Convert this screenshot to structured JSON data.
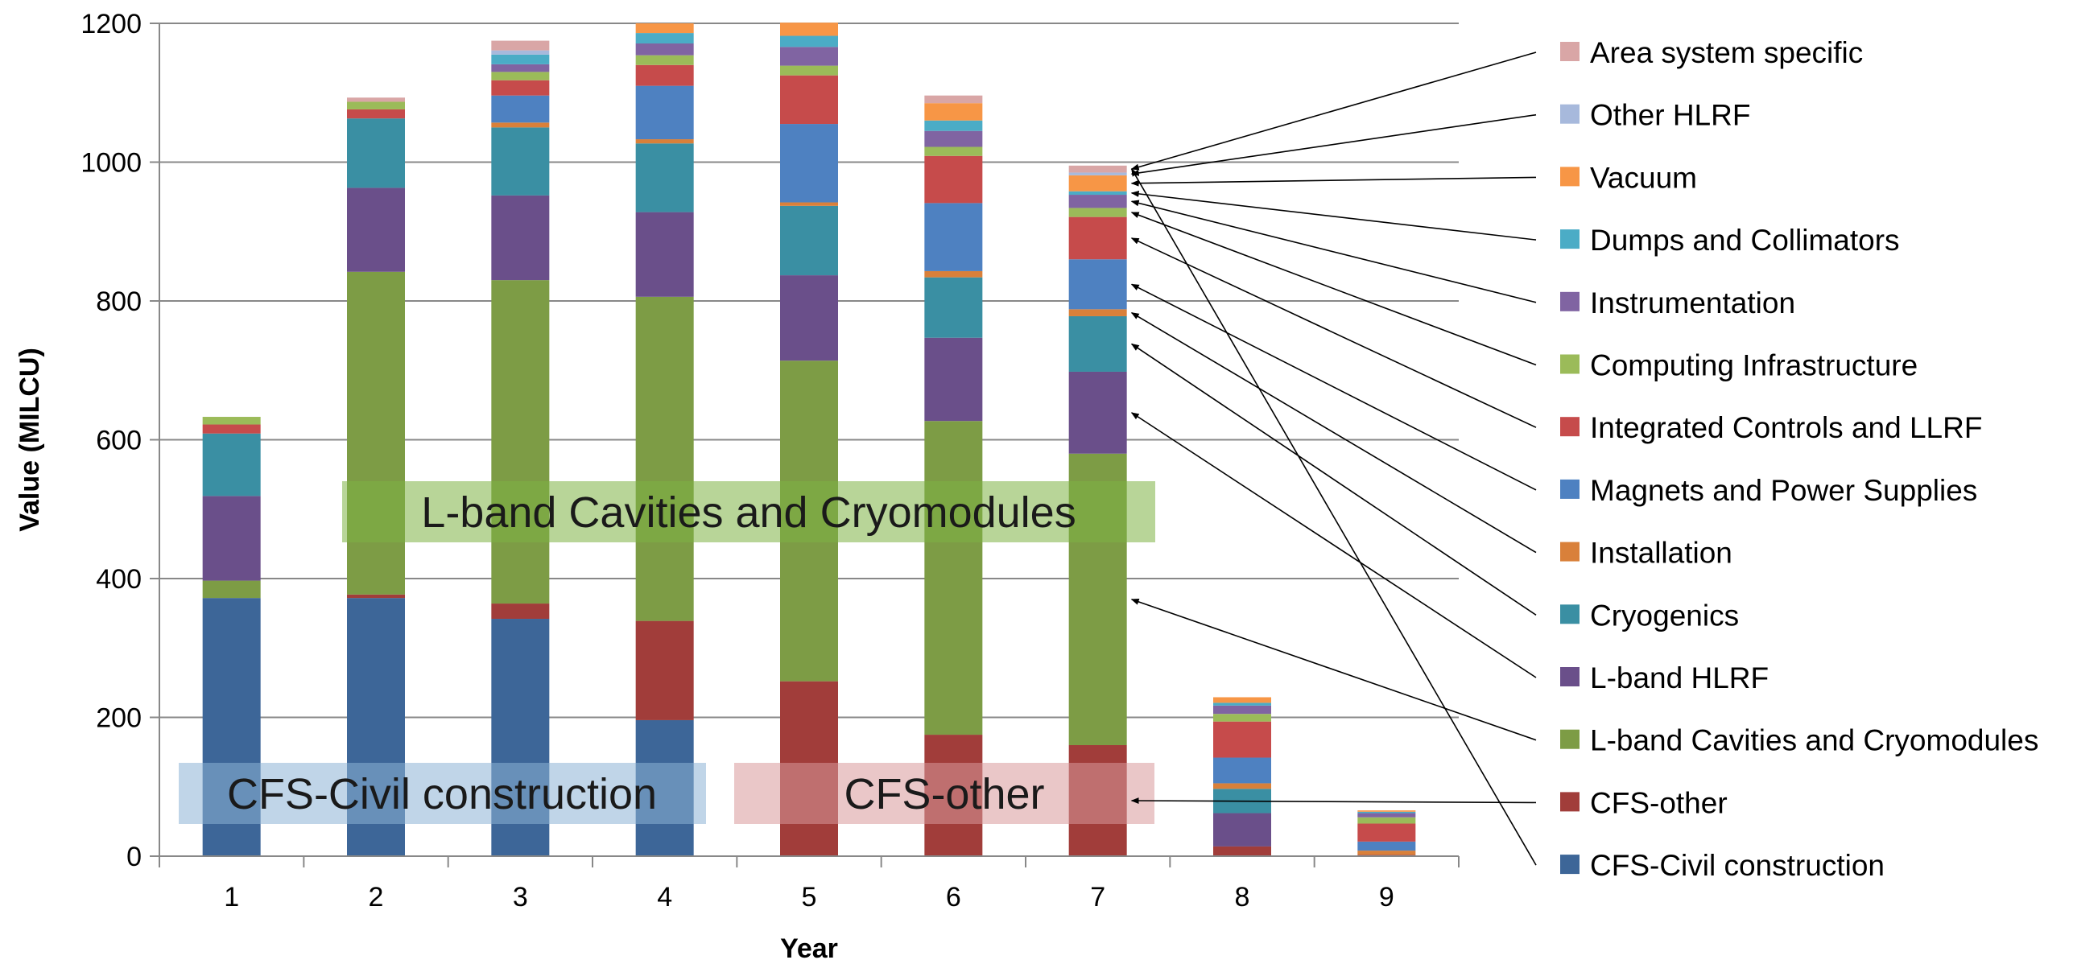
{
  "chart_data": {
    "type": "bar",
    "stacked": true,
    "xlabel": "Year",
    "ylabel": "Value (MILCU)",
    "ylim": [
      0,
      1200
    ],
    "yticks": [
      0,
      200,
      400,
      600,
      800,
      1000,
      1200
    ],
    "categories": [
      "1",
      "2",
      "3",
      "4",
      "5",
      "6",
      "7",
      "8",
      "9"
    ],
    "grid": true,
    "legend_position": "right",
    "series": [
      {
        "name": "CFS-Civil construction",
        "color": "#3D6698",
        "values": [
          372,
          372,
          342,
          196,
          0,
          0,
          0,
          0,
          0
        ]
      },
      {
        "name": "CFS-other",
        "color": "#A13D3A",
        "values": [
          0,
          5,
          22,
          143,
          252,
          175,
          160,
          14,
          2
        ]
      },
      {
        "name": "L-band Cavities and Cryomodules",
        "color": "#7D9C45",
        "values": [
          25,
          465,
          466,
          467,
          462,
          452,
          420,
          0,
          0
        ]
      },
      {
        "name": "L-band HLRF",
        "color": "#6A4F8A",
        "values": [
          122,
          121,
          122,
          122,
          123,
          120,
          118,
          48,
          0
        ]
      },
      {
        "name": "Cryogenics",
        "color": "#3A8FA3",
        "values": [
          90,
          100,
          98,
          99,
          100,
          87,
          80,
          35,
          0
        ]
      },
      {
        "name": "Installation",
        "color": "#D9803A",
        "values": [
          0,
          0,
          7,
          6,
          5,
          9,
          10,
          8,
          6
        ]
      },
      {
        "name": "Magnets and Power Supplies",
        "color": "#4E81C1",
        "values": [
          0,
          0,
          39,
          77,
          113,
          98,
          72,
          37,
          13
        ]
      },
      {
        "name": "Integrated Controls and LLRF",
        "color": "#C64B4B",
        "values": [
          13,
          13,
          22,
          30,
          70,
          68,
          61,
          52,
          26
        ]
      },
      {
        "name": "Computing Infrastructure",
        "color": "#9BBB59",
        "values": [
          11,
          11,
          12,
          14,
          14,
          13,
          13,
          11,
          9
        ]
      },
      {
        "name": "Instrumentation",
        "color": "#8064A2",
        "values": [
          0,
          0,
          11,
          17,
          27,
          23,
          19,
          12,
          6
        ]
      },
      {
        "name": "Dumps and Collimators",
        "color": "#4BACC6",
        "values": [
          0,
          0,
          14,
          15,
          16,
          15,
          5,
          4,
          2
        ]
      },
      {
        "name": "Vacuum",
        "color": "#F79646",
        "values": [
          0,
          0,
          0,
          14,
          19,
          25,
          23,
          8,
          2
        ]
      },
      {
        "name": "Other HLRF",
        "color": "#A7B9DC",
        "values": [
          0,
          0,
          6,
          0,
          0,
          0,
          4,
          0,
          0
        ]
      },
      {
        "name": "Area system specific",
        "color": "#D9A6A6",
        "values": [
          0,
          6,
          14,
          0,
          0,
          11,
          10,
          0,
          0
        ]
      }
    ],
    "annotations": [
      {
        "text": "L-band Cavities and Cryomodules",
        "color": "#7DB343"
      },
      {
        "text": "CFS-Civil construction",
        "color": "#8DB3D6"
      },
      {
        "text": "CFS-other",
        "color": "#D9999A"
      }
    ]
  }
}
